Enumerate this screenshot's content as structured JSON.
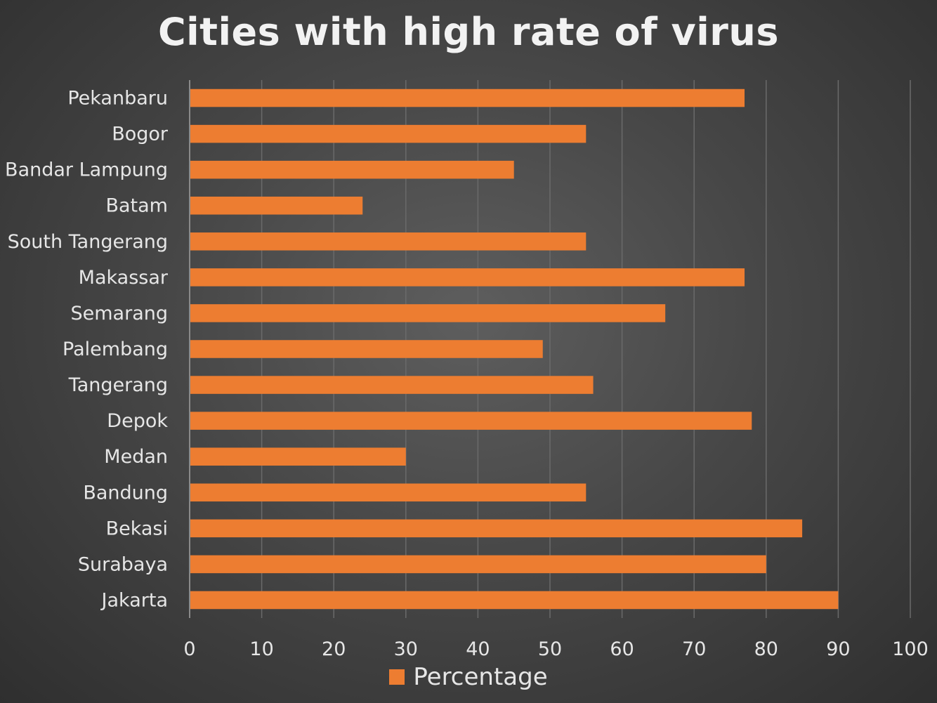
{
  "chart_data": {
    "type": "bar",
    "orientation": "horizontal",
    "title": "Cities with high rate of virus",
    "categories": [
      "Pekanbaru",
      "Bogor",
      "Bandar Lampung",
      "Batam",
      "South Tangerang",
      "Makassar",
      "Semarang",
      "Palembang",
      "Tangerang",
      "Depok",
      "Medan",
      "Bandung",
      "Bekasi",
      "Surabaya",
      "Jakarta"
    ],
    "series": [
      {
        "name": "Percentage",
        "color": "#ed7d31",
        "values": [
          77,
          55,
          45,
          24,
          55,
          77,
          66,
          49,
          56,
          78,
          30,
          55,
          85,
          80,
          90
        ]
      }
    ],
    "xlim": [
      0,
      100
    ],
    "xticks": [
      "0",
      "10",
      "20",
      "30",
      "40",
      "50",
      "60",
      "70",
      "80",
      "90",
      "100"
    ],
    "xlabel": "",
    "ylabel": "",
    "grid": "vertical",
    "legend": "bottom"
  }
}
